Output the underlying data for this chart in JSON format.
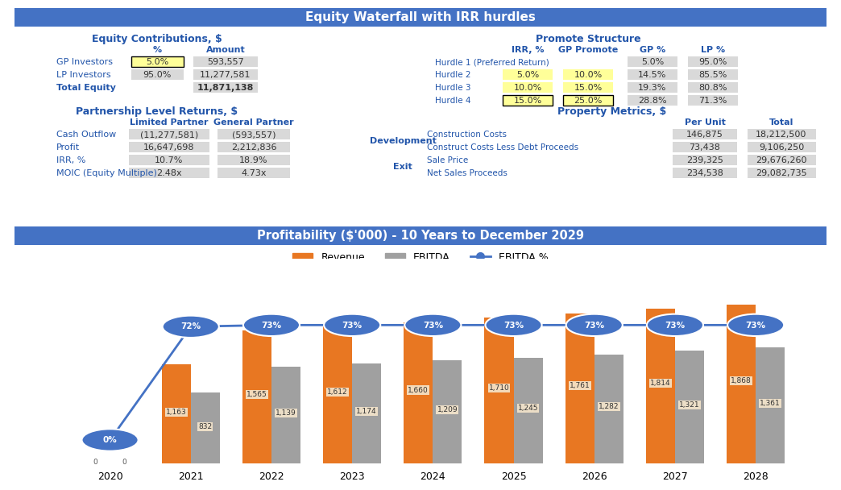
{
  "title_main": "Equity Waterfall with IRR hurdles",
  "title_main_bg": "#4472c4",
  "title_main_color": "white",
  "section1_title": "Equity Contributions, $",
  "equity_headers": [
    "%",
    "Amount"
  ],
  "equity_rows": [
    [
      "GP Investors",
      "5.0%",
      "593,557"
    ],
    [
      "LP Investors",
      "95.0%",
      "11,277,581"
    ],
    [
      "Total Equity",
      "",
      "11,871,138"
    ]
  ],
  "equity_highlight_color": "#ffff99",
  "section2_title": "Promote Structure",
  "promote_headers": [
    "IRR, %",
    "GP Promote",
    "GP %",
    "LP %"
  ],
  "promote_rows": [
    [
      "Hurdle 1 (Preferred Return)",
      "",
      "",
      "5.0%",
      "95.0%"
    ],
    [
      "Hurdle 2",
      "5.0%",
      "10.0%",
      "14.5%",
      "85.5%"
    ],
    [
      "Hurdle 3",
      "10.0%",
      "15.0%",
      "19.3%",
      "80.8%"
    ],
    [
      "Hurdle 4",
      "15.0%",
      "25.0%",
      "28.8%",
      "71.3%"
    ]
  ],
  "promote_highlight_color": "#ffff99",
  "section3_title": "Partnership Level Returns, $",
  "partner_headers": [
    "Limited Partner",
    "General Partner"
  ],
  "partner_rows": [
    [
      "Cash Outflow",
      "(11,277,581)",
      "(593,557)"
    ],
    [
      "Profit",
      "16,647,698",
      "2,212,836"
    ],
    [
      "IRR, %",
      "10.7%",
      "18.9%"
    ],
    [
      "MOIC (Equity Multiple)",
      "2.48x",
      "4.73x"
    ]
  ],
  "section4_title": "Property Metrics, $",
  "property_label1": "Development",
  "property_label2": "Exit",
  "property_headers": [
    "Per Unit",
    "Total"
  ],
  "property_rows": [
    [
      "Construction Costs",
      "146,875",
      "18,212,500"
    ],
    [
      "Construct Costs Less Debt Proceeds",
      "73,438",
      "9,106,250"
    ],
    [
      "Sale Price",
      "239,325",
      "29,676,260"
    ],
    [
      "Net Sales Proceeds",
      "234,538",
      "29,082,735"
    ]
  ],
  "chart_title": "Profitability ($'000) - 10 Years to December 2029",
  "chart_title_bg": "#4472c4",
  "chart_title_color": "white",
  "years": [
    2020,
    2021,
    2022,
    2023,
    2024,
    2025,
    2026,
    2027,
    2028
  ],
  "revenue": [
    0,
    1163,
    1565,
    1612,
    1660,
    1710,
    1761,
    1814,
    1868
  ],
  "ebitda": [
    0,
    832,
    1139,
    1174,
    1209,
    1245,
    1282,
    1321,
    1361
  ],
  "ebitda_pct": [
    0,
    72,
    73,
    73,
    73,
    73,
    73,
    73,
    73
  ],
  "revenue_color": "#e87722",
  "ebitda_color": "#a0a0a0",
  "line_color": "#4472c4",
  "marker_color": "#4472c4",
  "blue": "#2255aa",
  "gray_cell": "#d9d9d9",
  "bg_color": "white"
}
